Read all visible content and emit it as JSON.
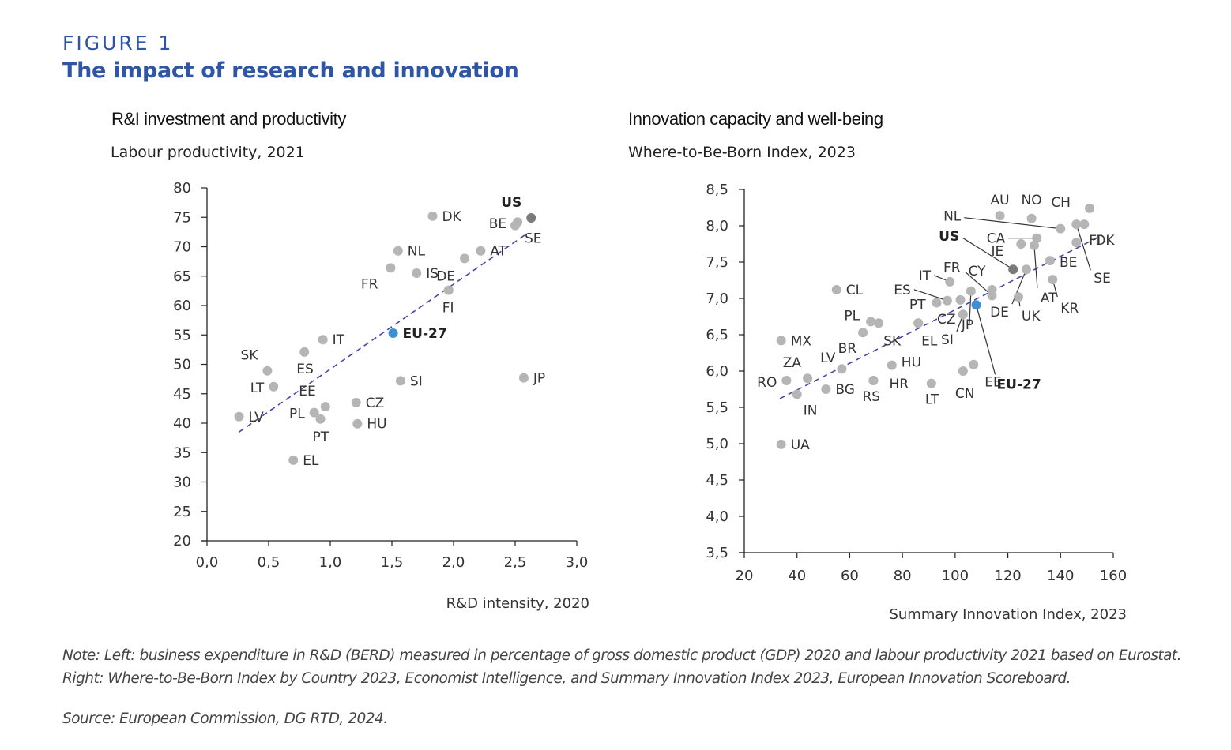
{
  "figure": {
    "label": "FIGURE 1",
    "title": "The impact of research and innovation",
    "note": "Note: Left: business expenditure in R&D (BERD) measured in percentage of gross domestic product (GDP) 2020 and labour productivity 2021 based on Eurostat. Right: Where-to-Be-Born Index by Country 2023, Economist Intelligence, and Summary Innovation Index 2023, European Innovation Scoreboard.",
    "source": "Source: European Commission, DG RTD, 2024."
  },
  "colors": {
    "accent": "#2f55a4",
    "point": "#b5b5b5",
    "highlight_us": "#7a7a7a",
    "highlight_eu": "#3d8fd1",
    "trendline": "#4b45a8"
  },
  "chart_data": [
    {
      "type": "scatter",
      "title": "R&I investment and productivity",
      "ylabel": "Labour productivity, 2021",
      "xlabel": "R&D intensity, 2020",
      "xlim": [
        0,
        3
      ],
      "ylim": [
        20,
        80
      ],
      "xticks": [
        "0,0",
        "0,5",
        "1,0",
        "1,5",
        "2,0",
        "2,5",
        "3,0"
      ],
      "yticks": [
        "20",
        "25",
        "30",
        "35",
        "40",
        "45",
        "50",
        "55",
        "60",
        "65",
        "70",
        "75",
        "80"
      ],
      "grid": false,
      "trendline": {
        "x": [
          0.26,
          2.58
        ],
        "y": [
          38.5,
          72.0
        ]
      },
      "points": [
        {
          "label": "US",
          "x": 2.63,
          "y": 74.9,
          "style": "us"
        },
        {
          "label": "DK",
          "x": 1.83,
          "y": 75.2
        },
        {
          "label": "BE",
          "x": 2.52,
          "y": 74.2
        },
        {
          "label": "SE",
          "x": 2.5,
          "y": 73.6
        },
        {
          "label": "NL",
          "x": 1.55,
          "y": 69.3
        },
        {
          "label": "AT",
          "x": 2.22,
          "y": 69.3
        },
        {
          "label": "DE",
          "x": 2.09,
          "y": 68.0
        },
        {
          "label": "FR",
          "x": 1.49,
          "y": 66.4
        },
        {
          "label": "IS",
          "x": 1.7,
          "y": 65.5
        },
        {
          "label": "FI",
          "x": 1.96,
          "y": 62.6
        },
        {
          "label": "EU-27",
          "x": 1.51,
          "y": 55.3,
          "style": "eu"
        },
        {
          "label": "IT",
          "x": 0.94,
          "y": 54.2
        },
        {
          "label": "ES",
          "x": 0.79,
          "y": 52.1
        },
        {
          "label": "SK",
          "x": 0.49,
          "y": 48.9
        },
        {
          "label": "LT",
          "x": 0.54,
          "y": 46.2
        },
        {
          "label": "SI",
          "x": 1.57,
          "y": 47.2
        },
        {
          "label": "JP",
          "x": 2.57,
          "y": 47.7
        },
        {
          "label": "EE",
          "x": 0.96,
          "y": 42.8
        },
        {
          "label": "CZ",
          "x": 1.21,
          "y": 43.5
        },
        {
          "label": "PL",
          "x": 0.87,
          "y": 41.8
        },
        {
          "label": "PT",
          "x": 0.92,
          "y": 40.7
        },
        {
          "label": "LV",
          "x": 0.26,
          "y": 41.1
        },
        {
          "label": "HU",
          "x": 1.22,
          "y": 39.9
        },
        {
          "label": "EL",
          "x": 0.7,
          "y": 33.7
        }
      ]
    },
    {
      "type": "scatter",
      "title": "Innovation capacity and well-being",
      "ylabel": "Where-to-Be-Born Index, 2023",
      "xlabel": "Summary Innovation Index, 2023",
      "xlim": [
        20,
        160
      ],
      "ylim": [
        3.5,
        8.5
      ],
      "xticks": [
        "20",
        "40",
        "60",
        "80",
        "100",
        "120",
        "140",
        "160"
      ],
      "yticks": [
        "3,5",
        "4,0",
        "4,5",
        "5,0",
        "5,5",
        "6,0",
        "6,5",
        "7,0",
        "7,5",
        "8,0",
        "8,5"
      ],
      "grid": false,
      "trendline": {
        "x": [
          33.5,
          155.8
        ],
        "y": [
          5.62,
          7.87
        ]
      },
      "points": [
        {
          "label": "CH",
          "x": 151,
          "y": 8.24
        },
        {
          "label": "AU",
          "x": 117,
          "y": 8.14
        },
        {
          "label": "NO",
          "x": 129,
          "y": 8.1
        },
        {
          "label": "NL",
          "x": 140,
          "y": 7.96
        },
        {
          "label": "SE",
          "x": 146,
          "y": 8.02
        },
        {
          "label": "DK",
          "x": 149,
          "y": 8.02
        },
        {
          "label": "CA",
          "x": 131,
          "y": 7.83
        },
        {
          "label": "IE",
          "x": 125,
          "y": 7.75
        },
        {
          "label": "AT",
          "x": 130,
          "y": 7.73
        },
        {
          "label": "FI",
          "x": 146,
          "y": 7.77
        },
        {
          "label": "BE",
          "x": 136,
          "y": 7.52
        },
        {
          "label": "US",
          "x": 122,
          "y": 7.4,
          "style": "us"
        },
        {
          "label": "DE",
          "x": 127,
          "y": 7.4
        },
        {
          "label": "KR",
          "x": 137,
          "y": 7.26
        },
        {
          "label": "UK",
          "x": 124,
          "y": 7.02
        },
        {
          "label": "CY",
          "x": 114,
          "y": 7.12
        },
        {
          "label": "FR",
          "x": 114,
          "y": 7.04
        },
        {
          "label": "IT",
          "x": 98,
          "y": 7.23
        },
        {
          "label": "ES",
          "x": 97,
          "y": 6.97
        },
        {
          "label": "PT",
          "x": 93,
          "y": 6.94
        },
        {
          "label": "CZ",
          "x": 102,
          "y": 6.98
        },
        {
          "label": "JP",
          "x": 106,
          "y": 7.1
        },
        {
          "label": "EU-27",
          "x": 108,
          "y": 6.91,
          "style": "eu"
        },
        {
          "label": "SI",
          "x": 103,
          "y": 6.78
        },
        {
          "label": "SK",
          "x": 86,
          "y": 6.66
        },
        {
          "label": "EL",
          "x": 86,
          "y": 6.66
        },
        {
          "label": "PL",
          "x": 68,
          "y": 6.68
        },
        {
          "label": "",
          "x": 71,
          "y": 6.66
        },
        {
          "label": "BR",
          "x": 65,
          "y": 6.53
        },
        {
          "label": "CL",
          "x": 55,
          "y": 7.12
        },
        {
          "label": "MX",
          "x": 34,
          "y": 6.42
        },
        {
          "label": "HU",
          "x": 76,
          "y": 6.08
        },
        {
          "label": "LV",
          "x": 57,
          "y": 6.03
        },
        {
          "label": "ZA",
          "x": 44,
          "y": 5.9
        },
        {
          "label": "RO",
          "x": 36,
          "y": 5.87
        },
        {
          "label": "IN",
          "x": 40,
          "y": 5.68
        },
        {
          "label": "BG",
          "x": 51,
          "y": 5.75
        },
        {
          "label": "RS",
          "x": 69,
          "y": 5.87
        },
        {
          "label": "HR",
          "x": 69,
          "y": 5.87
        },
        {
          "label": "LT",
          "x": 91,
          "y": 5.83
        },
        {
          "label": "CN",
          "x": 103,
          "y": 6.0
        },
        {
          "label": "EE",
          "x": 107,
          "y": 6.09
        },
        {
          "label": "UA",
          "x": 34,
          "y": 4.99
        }
      ]
    }
  ]
}
